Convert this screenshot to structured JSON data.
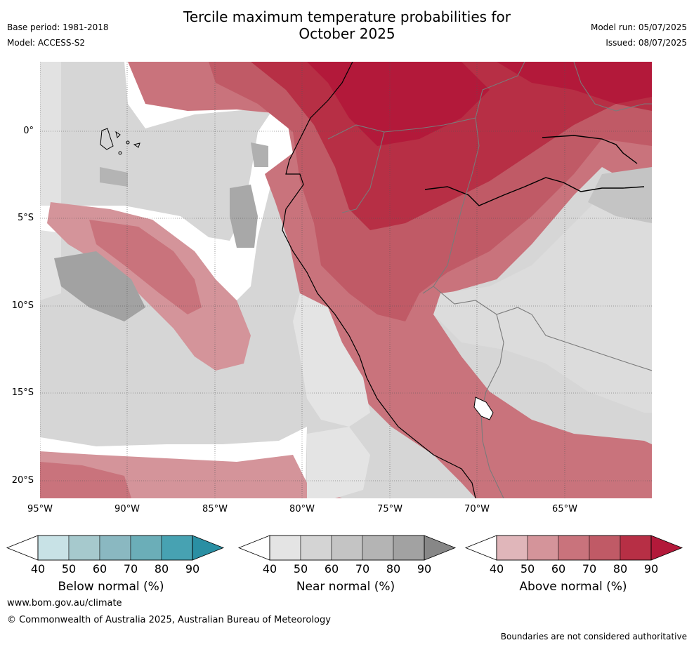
{
  "meta": {
    "base_period": "Base period: 1981-2018",
    "model": "Model: ACCESS-S2",
    "model_run": "Model run: 05/07/2025",
    "issued": "Issued: 08/07/2025"
  },
  "title": {
    "line1": "Tercile maximum temperature probabilities for",
    "line2": "October 2025"
  },
  "axes": {
    "lat_labels": [
      "0°",
      "5°S",
      "10°S",
      "15°S",
      "20°S"
    ],
    "lon_labels": [
      "95°W",
      "90°W",
      "85°W",
      "80°W",
      "75°W",
      "70°W",
      "65°W"
    ]
  },
  "colorbars": [
    {
      "label": "Below normal (%)",
      "ticks": [
        "40",
        "50",
        "60",
        "70",
        "80",
        "90"
      ],
      "colors": [
        "#ffffff",
        "#c8e2e6",
        "#a6c9cd",
        "#8ab8c1",
        "#6baeb8",
        "#47a2b2",
        "#2a8fa3"
      ]
    },
    {
      "label": "Near normal (%)",
      "ticks": [
        "40",
        "50",
        "60",
        "70",
        "80",
        "90"
      ],
      "colors": [
        "#ffffff",
        "#e4e4e4",
        "#d4d4d4",
        "#c4c4c4",
        "#b4b4b4",
        "#a2a2a2",
        "#878787"
      ]
    },
    {
      "label": "Above normal (%)",
      "ticks": [
        "40",
        "50",
        "60",
        "70",
        "80",
        "90"
      ],
      "colors": [
        "#ffffff",
        "#e0b6ba",
        "#d4949a",
        "#c9737c",
        "#c05a66",
        "#b72f45",
        "#b3193a"
      ]
    }
  ],
  "footer": {
    "url": "www.bom.gov.au/climate",
    "copyright": "© Commonwealth of Australia 2025, Australian Bureau of Meteorology",
    "disclaimer": "Boundaries are not considered authoritative"
  }
}
